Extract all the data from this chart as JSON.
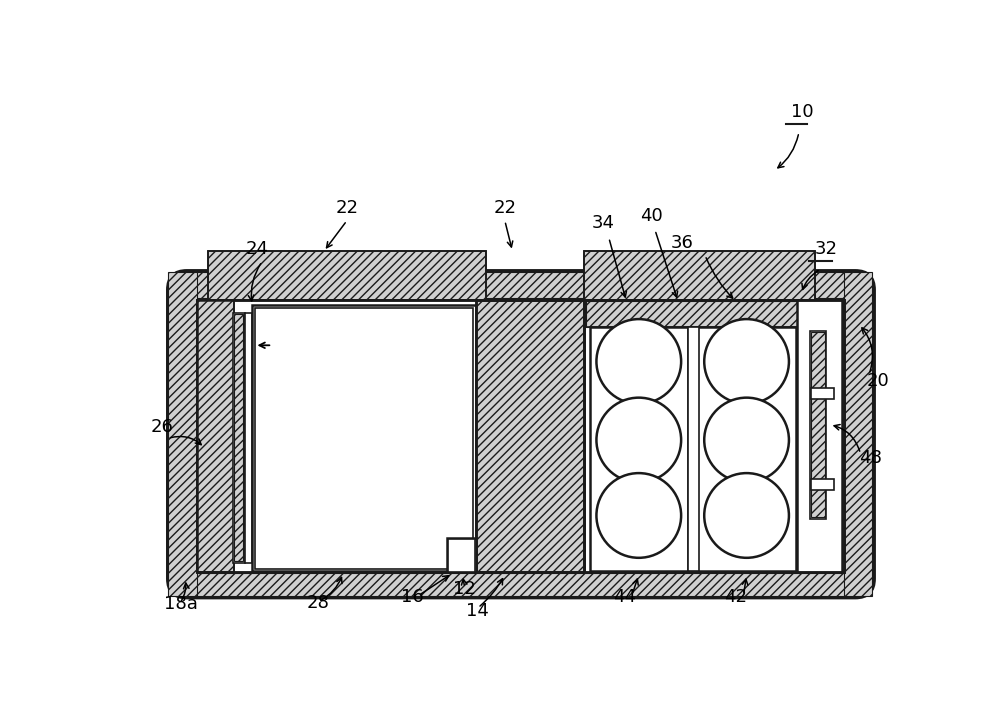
{
  "fig_width": 10.0,
  "fig_height": 7.15,
  "bg_color": "#ffffff",
  "lc": "#1a1a1a",
  "lw_outer": 2.2,
  "lw_main": 1.8,
  "lw_thin": 1.2,
  "lw_med": 1.5
}
